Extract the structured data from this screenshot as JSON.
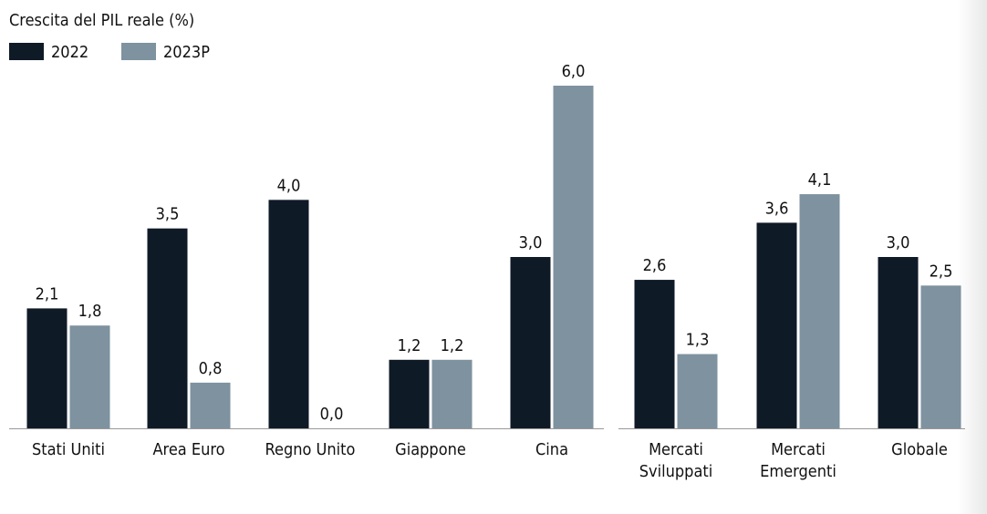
{
  "chart_data": {
    "type": "bar",
    "title": "Crescita del PIL reale (%)",
    "categories": [
      "Stati Uniti",
      "Area Euro",
      "Regno Unito",
      "Giappone",
      "Cina",
      "Mercati\nSviluppati",
      "Mercati\nEmergenti",
      "Globale"
    ],
    "series": [
      {
        "name": "2022",
        "color": "#0f1a27",
        "values": [
          2.1,
          3.5,
          4.0,
          1.2,
          3.0,
          2.6,
          3.6,
          3.0
        ],
        "value_labels": [
          "2,1",
          "3,5",
          "4,0",
          "1,2",
          "3,0",
          "2,6",
          "3,6",
          "3,0"
        ]
      },
      {
        "name": "2023P",
        "color": "#7e929f",
        "values": [
          1.8,
          0.8,
          0.0,
          1.2,
          6.0,
          1.3,
          4.1,
          2.5
        ],
        "value_labels": [
          "1,8",
          "0,8",
          "0,0",
          "1,2",
          "6,0",
          "1,3",
          "4,1",
          "2,5"
        ]
      }
    ],
    "ylim": [
      0,
      6
    ]
  }
}
